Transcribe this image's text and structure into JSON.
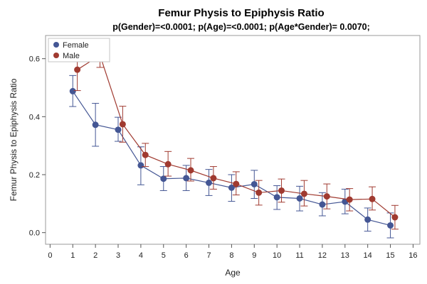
{
  "chart_data": {
    "type": "line",
    "title": "Femur Physis to Epiphysis Ratio",
    "subtitle": "p(Gender)=<0.0001; p(Age)=<0.0001; p(Age*Gender)= 0.0070;",
    "xlabel": "Age",
    "ylabel": "Femur Physis to Epiphysis Ratio",
    "xlim": [
      -0.2,
      16.3
    ],
    "ylim": [
      -0.04,
      0.68
    ],
    "x_ticks": [
      0,
      1,
      2,
      3,
      4,
      5,
      6,
      7,
      8,
      9,
      10,
      11,
      12,
      13,
      14,
      15,
      16
    ],
    "x_tick_labels": [
      "0",
      "1",
      "2",
      "3",
      "4",
      "5",
      "6",
      "7",
      "8",
      "9",
      "10",
      "11",
      "12",
      "13",
      "14",
      "15",
      "16"
    ],
    "y_ticks": [
      0.0,
      0.2,
      0.4,
      0.6
    ],
    "y_tick_labels": [
      "0.0",
      "0.2",
      "0.4",
      "0.6"
    ],
    "grid": false,
    "legend_position": "top-left",
    "error_bars": true,
    "series": [
      {
        "name": "Female",
        "color": "#445694",
        "x": [
          1,
          2,
          3,
          4,
          5,
          6,
          7,
          8,
          9,
          10,
          11,
          12,
          13,
          14,
          15
        ],
        "y": [
          0.488,
          0.372,
          0.355,
          0.232,
          0.186,
          0.188,
          0.172,
          0.155,
          0.167,
          0.122,
          0.118,
          0.097,
          0.107,
          0.045,
          0.025
        ],
        "lower": [
          0.435,
          0.298,
          0.315,
          0.165,
          0.145,
          0.145,
          0.128,
          0.108,
          0.118,
          0.08,
          0.075,
          0.058,
          0.065,
          0.005,
          -0.018
        ],
        "upper": [
          0.542,
          0.446,
          0.398,
          0.296,
          0.228,
          0.232,
          0.218,
          0.2,
          0.215,
          0.162,
          0.16,
          0.138,
          0.15,
          0.085,
          0.068
        ]
      },
      {
        "name": "Male",
        "color": "#a03a30",
        "x": [
          1.2,
          2.2,
          3.2,
          4.2,
          5.2,
          6.2,
          7.2,
          8.2,
          9.2,
          10.2,
          11.2,
          12.2,
          13.2,
          14.2,
          15.2
        ],
        "y": [
          0.562,
          0.612,
          0.374,
          0.268,
          0.236,
          0.215,
          0.188,
          0.168,
          0.138,
          0.145,
          0.134,
          0.125,
          0.114,
          0.116,
          0.053
        ],
        "lower": [
          0.49,
          0.57,
          0.312,
          0.228,
          0.195,
          0.178,
          0.15,
          0.13,
          0.095,
          0.105,
          0.092,
          0.082,
          0.075,
          0.078,
          0.012
        ],
        "upper": [
          0.636,
          0.655,
          0.436,
          0.308,
          0.28,
          0.256,
          0.228,
          0.21,
          0.18,
          0.185,
          0.18,
          0.168,
          0.152,
          0.158,
          0.094
        ]
      }
    ]
  }
}
